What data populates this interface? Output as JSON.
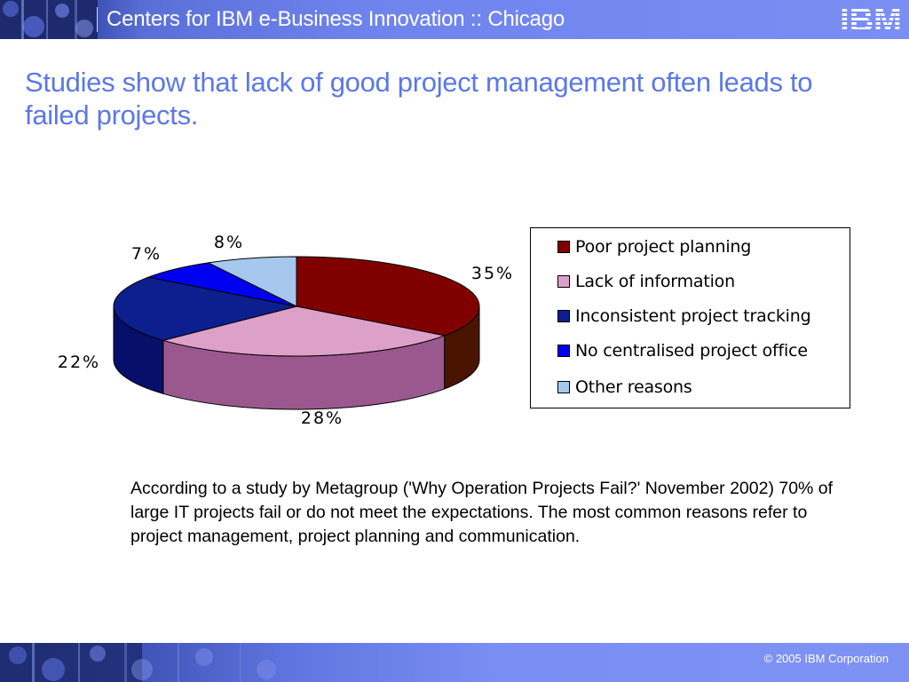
{
  "header": {
    "title": "Centers for IBM e-Business Innovation :: Chicago",
    "logo_text": "IBM"
  },
  "slide": {
    "title": "Studies show that lack of good project management often leads to failed projects."
  },
  "chart_data": {
    "type": "pie",
    "style": "3d",
    "categories": [
      "Poor project planning",
      "Lack of information",
      "Inconsistent project tracking",
      "No centralised project office",
      "Other reasons"
    ],
    "values": [
      35,
      28,
      22,
      7,
      8
    ],
    "labels": [
      "35%",
      "28%",
      "22%",
      "7%",
      "8%"
    ],
    "colors": [
      "#800000",
      "#dda0c8",
      "#0d1f8f",
      "#0000f0",
      "#a6c8ee"
    ],
    "side_colors": [
      "#4a1500",
      "#9b588f",
      "#06106a",
      "#0000a0",
      "#7890b8"
    ],
    "legend_position": "right"
  },
  "body": {
    "text": "According to a study by Metagroup ('Why Operation Projects Fail?' November 2002) 70% of large IT projects fail or do not meet the expectations. The most common reasons refer to project management, project planning and communication."
  },
  "footer": {
    "copyright": "© 2005 IBM Corporation"
  }
}
